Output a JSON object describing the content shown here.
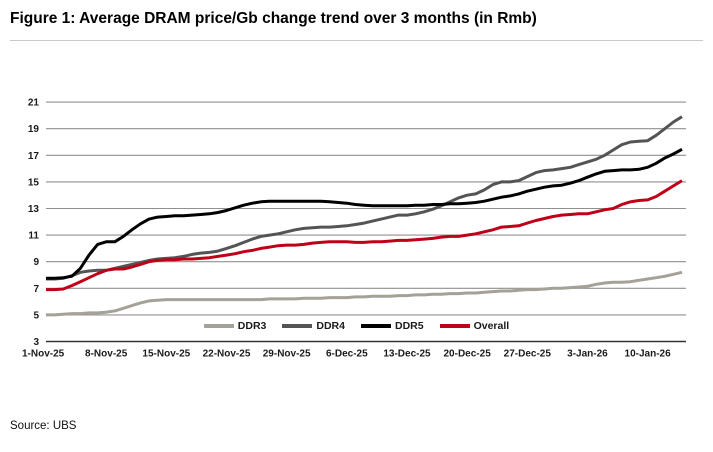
{
  "header": {
    "title": "Figure 1: Average DRAM price/Gb change trend over 3 months (in Rmb)"
  },
  "footer": {
    "source": "Source: UBS"
  },
  "chart_data": {
    "type": "line",
    "title": "Average DRAM price/Gb change trend over 3 months (in Rmb)",
    "xlabel": "",
    "ylabel": "",
    "ylim": [
      3,
      21
    ],
    "y_ticks": [
      3,
      5,
      7,
      9,
      11,
      13,
      15,
      17,
      19,
      21
    ],
    "x_tick_labels": [
      "1-Nov-25",
      "8-Nov-25",
      "15-Nov-25",
      "22-Nov-25",
      "29-Nov-25",
      "6-Dec-25",
      "13-Dec-25",
      "20-Dec-25",
      "27-Dec-25",
      "3-Jan-26",
      "10-Jan-26"
    ],
    "x_tick_interval_days": 7,
    "points_per_series": 75,
    "grid": "horizontal-only",
    "legend_position": "bottom-center",
    "axis_color": "#333333",
    "gridline_color": "#909090",
    "series": [
      {
        "name": "DDR3",
        "color": "#a3a198",
        "values": [
          5.0,
          5.0,
          5.05,
          5.1,
          5.1,
          5.15,
          5.15,
          5.2,
          5.3,
          5.5,
          5.7,
          5.9,
          6.05,
          6.1,
          6.15,
          6.15,
          6.15,
          6.15,
          6.15,
          6.15,
          6.15,
          6.15,
          6.15,
          6.15,
          6.15,
          6.15,
          6.2,
          6.2,
          6.2,
          6.2,
          6.25,
          6.25,
          6.25,
          6.3,
          6.3,
          6.3,
          6.35,
          6.35,
          6.4,
          6.4,
          6.4,
          6.45,
          6.45,
          6.5,
          6.5,
          6.55,
          6.55,
          6.6,
          6.6,
          6.65,
          6.65,
          6.7,
          6.75,
          6.8,
          6.8,
          6.85,
          6.9,
          6.9,
          6.95,
          7.0,
          7.0,
          7.05,
          7.1,
          7.15,
          7.3,
          7.4,
          7.45,
          7.45,
          7.5,
          7.6,
          7.7,
          7.8,
          7.9,
          8.05,
          8.2
        ]
      },
      {
        "name": "DDR4",
        "color": "#545454",
        "values": [
          7.7,
          7.7,
          7.75,
          7.95,
          8.2,
          8.3,
          8.35,
          8.35,
          8.5,
          8.65,
          8.8,
          8.95,
          9.1,
          9.2,
          9.25,
          9.3,
          9.4,
          9.55,
          9.65,
          9.7,
          9.8,
          10.0,
          10.2,
          10.45,
          10.7,
          10.9,
          11.0,
          11.1,
          11.25,
          11.4,
          11.5,
          11.55,
          11.6,
          11.6,
          11.65,
          11.7,
          11.8,
          11.9,
          12.05,
          12.2,
          12.35,
          12.5,
          12.5,
          12.6,
          12.75,
          12.95,
          13.2,
          13.5,
          13.8,
          14.0,
          14.1,
          14.4,
          14.8,
          15.0,
          15.0,
          15.1,
          15.4,
          15.7,
          15.85,
          15.9,
          16.0,
          16.1,
          16.3,
          16.5,
          16.7,
          17.0,
          17.4,
          17.8,
          18.0,
          18.05,
          18.1,
          18.5,
          19.0,
          19.5,
          19.9
        ]
      },
      {
        "name": "DDR5",
        "color": "#000000",
        "values": [
          7.75,
          7.75,
          7.8,
          7.9,
          8.5,
          9.5,
          10.3,
          10.5,
          10.5,
          10.9,
          11.4,
          11.85,
          12.2,
          12.35,
          12.4,
          12.45,
          12.45,
          12.5,
          12.55,
          12.6,
          12.7,
          12.85,
          13.05,
          13.25,
          13.4,
          13.5,
          13.55,
          13.55,
          13.55,
          13.55,
          13.55,
          13.55,
          13.55,
          13.5,
          13.45,
          13.4,
          13.3,
          13.25,
          13.2,
          13.2,
          13.2,
          13.2,
          13.2,
          13.25,
          13.25,
          13.3,
          13.3,
          13.35,
          13.35,
          13.4,
          13.45,
          13.55,
          13.7,
          13.85,
          13.95,
          14.1,
          14.3,
          14.45,
          14.6,
          14.7,
          14.75,
          14.9,
          15.1,
          15.35,
          15.6,
          15.8,
          15.85,
          15.9,
          15.9,
          15.95,
          16.1,
          16.4,
          16.8,
          17.1,
          17.45
        ]
      },
      {
        "name": "Overall",
        "color": "#c00018",
        "values": [
          6.9,
          6.9,
          6.95,
          7.2,
          7.5,
          7.8,
          8.1,
          8.35,
          8.45,
          8.45,
          8.6,
          8.8,
          9.0,
          9.1,
          9.15,
          9.15,
          9.2,
          9.2,
          9.25,
          9.3,
          9.4,
          9.5,
          9.6,
          9.75,
          9.85,
          10.0,
          10.1,
          10.2,
          10.25,
          10.25,
          10.3,
          10.4,
          10.45,
          10.5,
          10.5,
          10.5,
          10.45,
          10.45,
          10.5,
          10.5,
          10.55,
          10.6,
          10.6,
          10.65,
          10.7,
          10.75,
          10.85,
          10.9,
          10.9,
          11.0,
          11.1,
          11.25,
          11.4,
          11.6,
          11.65,
          11.7,
          11.9,
          12.1,
          12.25,
          12.4,
          12.5,
          12.55,
          12.6,
          12.6,
          12.75,
          12.9,
          13.0,
          13.3,
          13.5,
          13.6,
          13.65,
          13.9,
          14.3,
          14.7,
          15.1
        ]
      }
    ]
  }
}
